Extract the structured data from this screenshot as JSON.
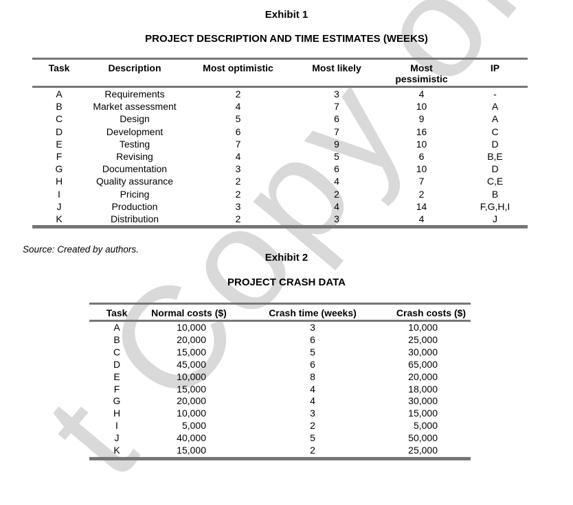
{
  "watermark": {
    "text": "t Copy or Post",
    "color": "#d9d9d9"
  },
  "exhibit1": {
    "title": "Exhibit 1",
    "subtitle": "PROJECT DESCRIPTION AND TIME ESTIMATES (WEEKS)",
    "table": {
      "headers": [
        "Task",
        "Description",
        "Most optimistic",
        "Most likely",
        "Most pessimistic",
        "IP"
      ],
      "rows": [
        [
          "A",
          "Requirements",
          "2",
          "3",
          "4",
          "-"
        ],
        [
          "B",
          "Market assessment",
          "4",
          "7",
          "10",
          "A"
        ],
        [
          "C",
          "Design",
          "5",
          "6",
          "9",
          "A"
        ],
        [
          "D",
          "Development",
          "6",
          "7",
          "16",
          "C"
        ],
        [
          "E",
          "Testing",
          "7",
          "9",
          "10",
          "D"
        ],
        [
          "F",
          "Revising",
          "4",
          "5",
          "6",
          "B,E"
        ],
        [
          "G",
          "Documentation",
          "3",
          "6",
          "10",
          "D"
        ],
        [
          "H",
          "Quality assurance",
          "2",
          "4",
          "7",
          "C,E"
        ],
        [
          "I",
          "Pricing",
          "2",
          "2",
          "2",
          "B"
        ],
        [
          "J",
          "Production",
          "3",
          "4",
          "14",
          "F,G,H,I"
        ],
        [
          "K",
          "Distribution",
          "2",
          "3",
          "4",
          "J"
        ]
      ]
    },
    "source": "Source: Created by authors."
  },
  "exhibit2": {
    "title": "Exhibit 2",
    "subtitle": "PROJECT CRASH DATA",
    "table": {
      "headers": [
        "Task",
        "Normal costs ($)",
        "Crash time (weeks)",
        "Crash costs ($)"
      ],
      "rows": [
        [
          "A",
          "10,000",
          "3",
          "10,000"
        ],
        [
          "B",
          "20,000",
          "6",
          "25,000"
        ],
        [
          "C",
          "15,000",
          "5",
          "30,000"
        ],
        [
          "D",
          "45,000",
          "6",
          "65,000"
        ],
        [
          "E",
          "10,000",
          "8",
          "20,000"
        ],
        [
          "F",
          "15,000",
          "4",
          "18,000"
        ],
        [
          "G",
          "20,000",
          "4",
          "30,000"
        ],
        [
          "H",
          "10,000",
          "3",
          "15,000"
        ],
        [
          "I",
          "5,000",
          "2",
          "5,000"
        ],
        [
          "J",
          "40,000",
          "5",
          "50,000"
        ],
        [
          "K",
          "15,000",
          "2",
          "25,000"
        ]
      ]
    }
  }
}
